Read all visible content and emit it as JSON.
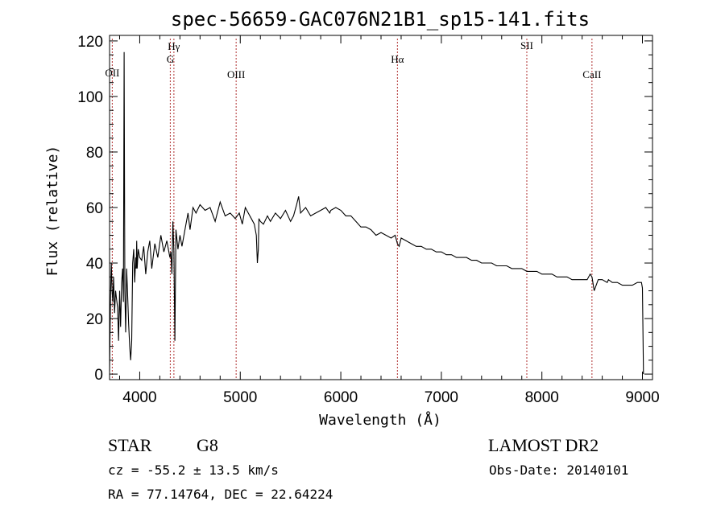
{
  "chart_data": {
    "type": "line",
    "title": "spec-56659-GAC076N21B1_sp15-141.fits",
    "xlabel": "Wavelength (Å)",
    "ylabel": "Flux (relative)",
    "xlim": [
      3700,
      9100
    ],
    "ylim": [
      -2,
      122
    ],
    "xticks": [
      4000,
      5000,
      6000,
      7000,
      8000,
      9000
    ],
    "xtick_labels": [
      "4000",
      "5000",
      "6000",
      "7000",
      "8000",
      "9000"
    ],
    "yticks": [
      0,
      20,
      40,
      60,
      80,
      100,
      120
    ],
    "ytick_labels": [
      "0",
      "20",
      "40",
      "60",
      "80",
      "100",
      "120"
    ],
    "grid": false,
    "line_color": "#000000",
    "marker_color": "#b03030",
    "spectral_lines": [
      {
        "label": "OII",
        "wavelength": 3727
      },
      {
        "label": "Hγ",
        "wavelength": 4340
      },
      {
        "label": "G",
        "wavelength": 4304
      },
      {
        "label": "OIII",
        "wavelength": 4959
      },
      {
        "label": "Hα",
        "wavelength": 6563
      },
      {
        "label": "SII",
        "wavelength": 7850
      },
      {
        "label": "CaII",
        "wavelength": 8498
      }
    ],
    "series": [
      {
        "x": [
          3700,
          3710,
          3718,
          3725,
          3732,
          3740,
          3750,
          3760,
          3770,
          3780,
          3790,
          3800,
          3810,
          3820,
          3830,
          3838,
          3845,
          3852,
          3860,
          3870,
          3880,
          3890,
          3900,
          3910,
          3920,
          3930,
          3940,
          3950,
          3960,
          3965,
          3970,
          3975,
          3985,
          4000,
          4020,
          4040,
          4060,
          4080,
          4100,
          4120,
          4150,
          4180,
          4210,
          4240,
          4270,
          4300,
          4310,
          4320,
          4330,
          4340,
          4350,
          4360,
          4380,
          4400,
          4420,
          4450,
          4480,
          4500,
          4530,
          4560,
          4600,
          4650,
          4700,
          4750,
          4800,
          4850,
          4900,
          4950,
          4990,
          5020,
          5050,
          5080,
          5110,
          5140,
          5160,
          5170,
          5180,
          5185,
          5200,
          5230,
          5270,
          5300,
          5350,
          5400,
          5450,
          5500,
          5530,
          5560,
          5580,
          5600,
          5650,
          5700,
          5750,
          5800,
          5850,
          5890,
          5900,
          5950,
          6000,
          6050,
          6100,
          6150,
          6200,
          6250,
          6300,
          6350,
          6400,
          6450,
          6500,
          6540,
          6563,
          6580,
          6600,
          6650,
          6700,
          6750,
          6800,
          6850,
          6900,
          6950,
          7000,
          7050,
          7100,
          7150,
          7200,
          7250,
          7300,
          7350,
          7400,
          7450,
          7500,
          7550,
          7600,
          7650,
          7700,
          7750,
          7800,
          7850,
          7900,
          7950,
          8000,
          8050,
          8100,
          8150,
          8200,
          8250,
          8300,
          8350,
          8400,
          8450,
          8480,
          8498,
          8520,
          8540,
          8560,
          8600,
          8650,
          8662,
          8700,
          8750,
          8800,
          8850,
          8900,
          8950,
          8990,
          9000,
          9010
        ],
        "y": [
          1,
          28,
          40,
          30,
          26,
          35,
          22,
          30,
          27,
          24,
          12,
          30,
          17,
          33,
          38,
          26,
          116,
          30,
          15,
          38,
          28,
          18,
          10,
          5,
          12,
          40,
          45,
          33,
          42,
          38,
          48,
          38,
          45,
          42,
          41,
          46,
          36,
          44,
          48,
          38,
          47,
          42,
          50,
          44,
          48,
          42,
          44,
          36,
          55,
          44,
          12,
          52,
          45,
          50,
          46,
          52,
          58,
          52,
          60,
          58,
          61,
          59,
          60,
          55,
          62,
          57,
          58,
          56,
          58,
          54,
          60,
          58,
          56,
          54,
          50,
          40,
          45,
          56,
          55,
          54,
          57,
          55,
          58,
          56,
          59,
          55,
          57,
          61,
          64,
          58,
          60,
          57,
          58,
          59,
          60,
          58,
          59,
          60,
          59,
          57,
          57,
          55,
          53,
          53,
          52,
          50,
          51,
          50,
          49,
          50,
          47,
          46,
          49,
          48,
          47,
          46,
          46,
          45,
          45,
          44,
          44,
          43,
          43,
          42,
          42,
          42,
          41,
          41,
          40,
          40,
          40,
          39,
          39,
          39,
          38,
          38,
          38,
          37,
          37,
          37,
          36,
          36,
          36,
          35,
          35,
          35,
          34,
          34,
          34,
          34,
          36,
          35,
          30,
          32,
          34,
          34,
          33,
          34,
          33,
          33,
          32,
          32,
          32,
          33,
          33,
          31,
          0
        ]
      }
    ]
  },
  "info": {
    "object_class": "STAR",
    "subclass": "G8",
    "survey": "LAMOST DR2",
    "redshift": "cz = -55.2 ± 13.5 km/s",
    "obs_date": "Obs-Date: 20140101",
    "coords": "RA =  77.14764, DEC =  22.64224"
  }
}
